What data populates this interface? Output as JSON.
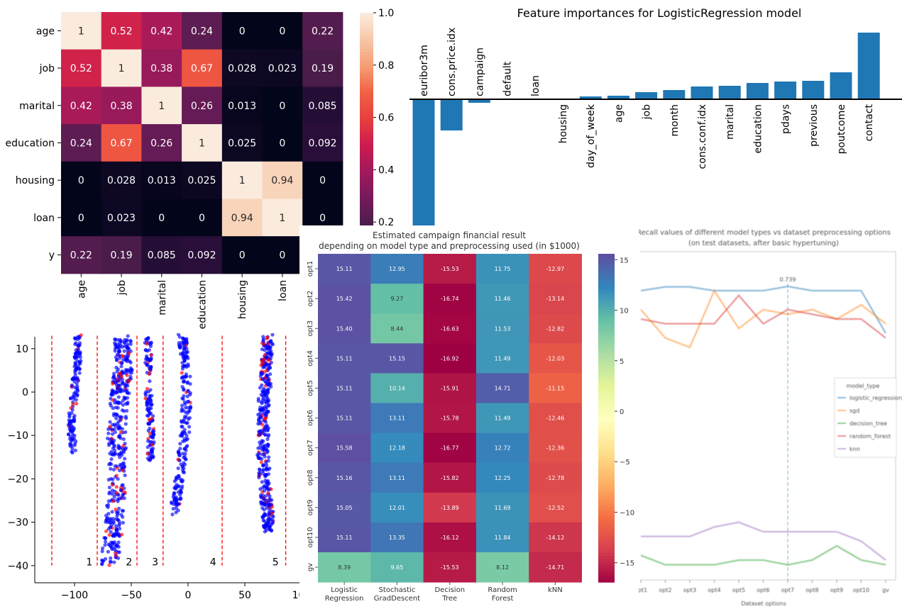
{
  "chart_data": [
    {
      "type": "heatmap",
      "rows": [
        "age",
        "job",
        "marital",
        "education",
        "housing",
        "loan",
        "y"
      ],
      "cols": [
        "age",
        "job",
        "marital",
        "education",
        "housing",
        "loan",
        "y"
      ],
      "values": [
        [
          1,
          0.52,
          0.42,
          0.24,
          0,
          0,
          0.22
        ],
        [
          0.52,
          1,
          0.38,
          0.67,
          0.028,
          0.023,
          0.19
        ],
        [
          0.42,
          0.38,
          1,
          0.26,
          0.013,
          0,
          0.085
        ],
        [
          0.24,
          0.67,
          0.26,
          1,
          0.025,
          0,
          0.092
        ],
        [
          0,
          0.028,
          0.013,
          0.025,
          1,
          0.94,
          0
        ],
        [
          0,
          0.023,
          0,
          0,
          0.94,
          1,
          0
        ],
        [
          0.22,
          0.19,
          0.085,
          0.092,
          0,
          0,
          null
        ]
      ],
      "labels": [
        [
          "1",
          "0.52",
          "0.42",
          "0.24",
          "0",
          "0",
          "0.22"
        ],
        [
          "0.52",
          "1",
          "0.38",
          "0.67",
          "0.028",
          "0.023",
          "0.19"
        ],
        [
          "0.42",
          "0.38",
          "1",
          "0.26",
          "0.013",
          "0",
          "0.085"
        ],
        [
          "0.24",
          "0.67",
          "0.26",
          "1",
          "0.025",
          "0",
          "0.092"
        ],
        [
          "0",
          "0.028",
          "0.013",
          "0.025",
          "1",
          "0.94",
          "0"
        ],
        [
          "0",
          "0.023",
          "0",
          "0",
          "0.94",
          "1",
          "0"
        ],
        [
          "0.22",
          "0.19",
          "0.085",
          "0.092",
          "0",
          "0",
          ""
        ]
      ],
      "colormap": "rocket",
      "vlim": [
        0,
        1
      ],
      "colorbar_ticks": [
        "1.0",
        "0.8",
        "0.6",
        "0.4",
        "0.2"
      ]
    },
    {
      "type": "bar",
      "title": "Feature importances for LogisticRegression model",
      "categories": [
        "euribor3m",
        "cons.price.idx",
        "campaign",
        "default",
        "loan",
        "housing",
        "day_of_week",
        "age",
        "job",
        "month",
        "cons.conf.idx",
        "marital",
        "education",
        "pdays",
        "previous",
        "poutcome",
        "contact"
      ],
      "values": [
        -3.58,
        -0.88,
        -0.1,
        0,
        0,
        0,
        0.08,
        0.1,
        0.2,
        0.26,
        0.36,
        0.38,
        0.46,
        0.5,
        0.52,
        0.76,
        1.88
      ],
      "color": "#1f77b4",
      "y_axis_shown": false
    },
    {
      "type": "scatter",
      "xticks": [
        "-100",
        "-50",
        "0",
        "50",
        "100"
      ],
      "xtick_values": [
        -100,
        -50,
        0,
        50,
        100
      ],
      "yticks": [
        "10",
        "0",
        "-10",
        "-20",
        "-30",
        "-40"
      ],
      "ytick_values": [
        10,
        0,
        -10,
        -20,
        -30,
        -40
      ],
      "xlim": [
        -135,
        100
      ],
      "ylim": [
        -44,
        13
      ],
      "colors": {
        "class0": "#0000ff",
        "class1": "#ff0000"
      },
      "dividers": [
        -120,
        -80,
        -45,
        -22,
        30,
        86
      ],
      "divider_color": "#ff0000",
      "cluster_labels": [
        {
          "text": "1",
          "x": -87,
          "y": -39
        },
        {
          "text": "2",
          "x": -52,
          "y": -39
        },
        {
          "text": "3",
          "x": -29,
          "y": -39
        },
        {
          "text": "4",
          "x": 22,
          "y": -39
        },
        {
          "text": "5",
          "x": 77,
          "y": -39
        }
      ],
      "clusters": [
        {
          "path": [
            [
              -101,
              -14
            ],
            [
              -103,
              -8
            ],
            [
              -100,
              0
            ],
            [
              -97,
              8
            ],
            [
              -97,
              13
            ]
          ],
          "spread": 3,
          "count": 150,
          "red_share": 0.06
        },
        {
          "path": [
            [
              -69,
              -40
            ],
            [
              -65,
              -30
            ],
            [
              -62,
              -20
            ],
            [
              -63,
              -10
            ],
            [
              -60,
              0
            ],
            [
              -57,
              5
            ],
            [
              -58,
              13
            ]
          ],
          "spread": 8,
          "count": 450,
          "red_share": 0.08
        },
        {
          "path": [
            [
              -33,
              -16
            ],
            [
              -33,
              -8
            ],
            [
              -35,
              0
            ],
            [
              -35,
              13
            ]
          ],
          "spread": 3,
          "count": 140,
          "red_share": 0.1
        },
        {
          "path": [
            [
              -12,
              -28
            ],
            [
              -8,
              -20
            ],
            [
              -3,
              -10
            ],
            [
              -1,
              0
            ],
            [
              -3,
              8
            ],
            [
              -5,
              13
            ]
          ],
          "spread": 4,
          "count": 220,
          "red_share": 0.04
        },
        {
          "path": [
            [
              72,
              -32
            ],
            [
              69,
              -25
            ],
            [
              66,
              -15
            ],
            [
              66,
              -5
            ],
            [
              69,
              5
            ],
            [
              70,
              13
            ]
          ],
          "spread": 5,
          "count": 400,
          "red_share": 0.12
        },
        {
          "path": [
            [
              103,
              -5
            ],
            [
              103,
              7
            ]
          ],
          "spread": 2,
          "count": 60,
          "red_share": 0.4
        }
      ]
    },
    {
      "type": "heatmap",
      "title": "Estimated campaign financial result\ndepending on model type and preprocessing used (in $1000)",
      "title_lines": [
        "Estimated campaign financial result",
        "depending on model type and preprocessing used (in $1000)"
      ],
      "rows": [
        "opt1",
        "opt2",
        "opt3",
        "opt4",
        "opt5",
        "opt6",
        "opt7",
        "opt8",
        "opt9",
        "opt10",
        "gv"
      ],
      "cols": [
        [
          "Logistic",
          "Regression"
        ],
        [
          "Stochastic",
          "GradDescent"
        ],
        [
          "Decision",
          "Tree"
        ],
        [
          "Random",
          "Forest"
        ],
        [
          "kNN"
        ]
      ],
      "values": [
        [
          15.11,
          12.95,
          -15.53,
          11.75,
          -12.97
        ],
        [
          15.42,
          9.27,
          -16.74,
          11.46,
          -13.14
        ],
        [
          15.4,
          8.44,
          -16.63,
          11.53,
          -12.82
        ],
        [
          15.11,
          15.15,
          -16.92,
          11.49,
          -12.03
        ],
        [
          15.11,
          10.14,
          -15.91,
          14.71,
          -11.15
        ],
        [
          15.11,
          13.11,
          -15.78,
          11.49,
          -12.46
        ],
        [
          15.58,
          12.18,
          -16.77,
          12.72,
          -12.36
        ],
        [
          15.16,
          13.11,
          -15.82,
          12.25,
          -12.78
        ],
        [
          15.05,
          12.01,
          -13.89,
          11.69,
          -12.52
        ],
        [
          15.11,
          13.35,
          -16.12,
          11.84,
          -14.12
        ],
        [
          8.39,
          9.65,
          -15.53,
          8.12,
          -14.71
        ]
      ],
      "colormap": "Spectral",
      "vlim": [
        -16.92,
        15.58
      ],
      "colorbar_ticks": [
        15,
        10,
        5,
        0,
        -5,
        -10,
        -15
      ],
      "colorbar_tick_labels": [
        "15",
        "10",
        "5",
        "0",
        "−5",
        "−10",
        "−15"
      ]
    },
    {
      "type": "line",
      "title_lines": [
        "Recall values of different model types vs dataset preprocessing options",
        "(on test datasets, after basic hypertuning)"
      ],
      "xlabel": "Dataset options",
      "categories": [
        "opt1",
        "opt2",
        "opt3",
        "opt4",
        "opt5",
        "opt6",
        "opt7",
        "opt8",
        "opt9",
        "opt10",
        "gv"
      ],
      "ylim": [
        0.11,
        0.81
      ],
      "y_axis_shown": false,
      "legend": {
        "title": "model_type",
        "position": "center-right"
      },
      "annotation": {
        "text": "0.739",
        "x": "opt7",
        "y": 0.739
      },
      "series": [
        {
          "name": "logistic_regression",
          "color": "#1f77b4",
          "values": [
            0.73,
            0.738,
            0.738,
            0.73,
            0.73,
            0.73,
            0.739,
            0.73,
            0.73,
            0.73,
            0.64
          ]
        },
        {
          "name": "sgd",
          "color": "#ff7f0e",
          "values": [
            0.69,
            0.63,
            0.61,
            0.73,
            0.65,
            0.69,
            0.68,
            0.69,
            0.67,
            0.7,
            0.66
          ]
        },
        {
          "name": "decision_tree",
          "color": "#2ca02c",
          "values": [
            0.17,
            0.15,
            0.15,
            0.15,
            0.16,
            0.16,
            0.15,
            0.16,
            0.19,
            0.16,
            0.15
          ]
        },
        {
          "name": "random_forest",
          "color": "#d62728",
          "values": [
            0.67,
            0.66,
            0.66,
            0.66,
            0.72,
            0.66,
            0.69,
            0.68,
            0.67,
            0.67,
            0.63
          ]
        },
        {
          "name": "knn",
          "color": "#9467bd",
          "values": [
            0.21,
            0.21,
            0.21,
            0.23,
            0.24,
            0.22,
            0.22,
            0.22,
            0.22,
            0.2,
            0.16
          ]
        }
      ]
    }
  ]
}
